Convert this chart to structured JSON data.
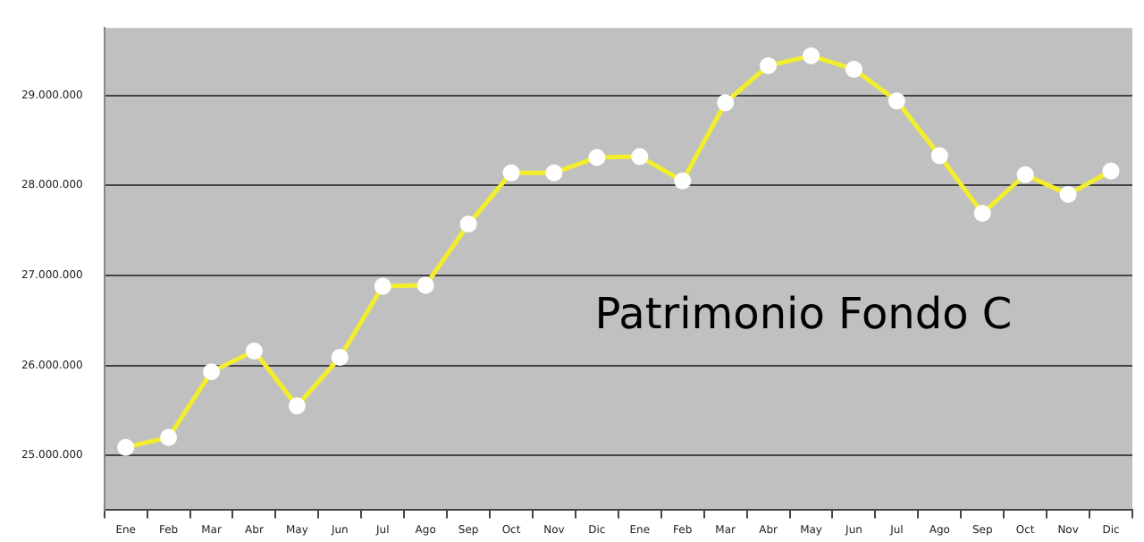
{
  "chart_data": {
    "type": "line",
    "title": "Patrimonio Fondo C",
    "categories": [
      "Ene",
      "Feb",
      "Mar",
      "Abr",
      "May",
      "Jun",
      "Jul",
      "Ago",
      "Sep",
      "Oct",
      "Nov",
      "Dic",
      "Ene",
      "Feb",
      "Mar",
      "Abr",
      "May",
      "Jun",
      "Jul",
      "Ago",
      "Sep",
      "Oct",
      "Nov",
      "Dic"
    ],
    "series": [
      {
        "color": "#f2ee2e",
        "values": [
          25090000,
          25200000,
          25930000,
          26160000,
          25550000,
          26090000,
          26880000,
          26890000,
          27570000,
          28140000,
          28140000,
          28310000,
          28320000,
          28050000,
          28920000,
          29330000,
          29440000,
          29290000,
          28940000,
          28330000,
          27690000,
          28120000,
          27900000,
          28160000
        ]
      }
    ],
    "ylim": [
      24400000,
      29750000
    ],
    "yticks": [
      {
        "value": 25000000,
        "label": "25.000.000"
      },
      {
        "value": 26000000,
        "label": "26.000.000"
      },
      {
        "value": 27000000,
        "label": "27.000.000"
      },
      {
        "value": 28000000,
        "label": "28.000.000"
      },
      {
        "value": 29000000,
        "label": "29.000.000"
      }
    ],
    "grid": "y",
    "legend": false,
    "marker": "circle",
    "line_style": "solid"
  }
}
